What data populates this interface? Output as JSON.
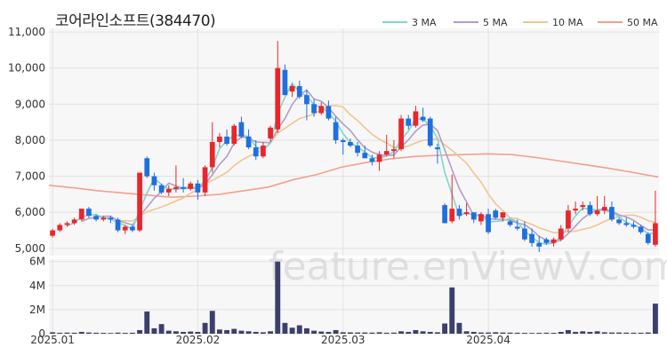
{
  "title": "코어라인소프트(384470)",
  "watermark": "feature.enViewV.com",
  "colors": {
    "up": "#e8262b",
    "down": "#1f6fe0",
    "ma3": "#7fd6cf",
    "ma5": "#b49cc8",
    "ma10": "#f2c58f",
    "ma50": "#f3a08d",
    "volume": "#3d3f6b",
    "panel": "#f7f7f7",
    "grid": "#e2e2e2"
  },
  "chart_data": {
    "type": "candlestick",
    "price_axis": {
      "ylim": [
        4800,
        11100
      ],
      "ticks": [
        5000,
        6000,
        7000,
        8000,
        9000,
        10000,
        11000
      ],
      "tick_labels": [
        "5,000",
        "6,000",
        "7,000",
        "8,000",
        "9,000",
        "10,000",
        "11,000"
      ]
    },
    "volume_axis": {
      "ylim": [
        0,
        6200000
      ],
      "ticks": [
        0,
        2000000,
        4000000,
        6000000
      ],
      "tick_labels": [
        "0",
        "2M",
        "4M",
        "6M"
      ]
    },
    "x_ticks": [
      {
        "index": 0,
        "label": "2025.01"
      },
      {
        "index": 20,
        "label": "2025.02"
      },
      {
        "index": 40,
        "label": "2025.03"
      },
      {
        "index": 60,
        "label": "2025.04"
      }
    ],
    "legend": [
      "3 MA",
      "5 MA",
      "10 MA",
      "50 MA"
    ],
    "ohlc": [
      [
        5350,
        5550,
        5300,
        5500
      ],
      [
        5500,
        5700,
        5450,
        5650
      ],
      [
        5650,
        5750,
        5600,
        5700
      ],
      [
        5700,
        5850,
        5650,
        5800
      ],
      [
        5800,
        6100,
        5750,
        6100
      ],
      [
        6100,
        6150,
        5850,
        5900
      ],
      [
        5900,
        5950,
        5750,
        5800
      ],
      [
        5800,
        5900,
        5750,
        5850
      ],
      [
        5850,
        5900,
        5700,
        5800
      ],
      [
        5800,
        5850,
        5450,
        5500
      ],
      [
        5500,
        5650,
        5400,
        5600
      ],
      [
        5600,
        5650,
        5450,
        5500
      ],
      [
        5500,
        7100,
        5450,
        7100
      ],
      [
        7500,
        7550,
        6950,
        7000
      ],
      [
        7000,
        7100,
        6600,
        6750
      ],
      [
        6750,
        6800,
        6500,
        6550
      ],
      [
        6550,
        6750,
        6450,
        6650
      ],
      [
        6650,
        7300,
        6550,
        6700
      ],
      [
        6700,
        6950,
        6550,
        6650
      ],
      [
        6650,
        6850,
        6600,
        6800
      ],
      [
        6800,
        6900,
        6350,
        6550
      ],
      [
        6550,
        7300,
        6450,
        7250
      ],
      [
        7250,
        8500,
        7100,
        7950
      ],
      [
        7950,
        8200,
        7800,
        8100
      ],
      [
        8100,
        8300,
        7850,
        7900
      ],
      [
        7900,
        8450,
        7850,
        8400
      ],
      [
        8500,
        8650,
        8050,
        8100
      ],
      [
        8100,
        8300,
        7750,
        7800
      ],
      [
        7800,
        8000,
        7450,
        7550
      ],
      [
        7550,
        7950,
        7500,
        7850
      ],
      [
        8050,
        8400,
        7950,
        8350
      ],
      [
        8300,
        10750,
        8200,
        10000
      ],
      [
        9950,
        10100,
        9250,
        9250
      ],
      [
        9350,
        9550,
        9200,
        9500
      ],
      [
        9500,
        9650,
        9150,
        9200
      ],
      [
        9250,
        9400,
        8550,
        9000
      ],
      [
        9000,
        9150,
        8650,
        8750
      ],
      [
        8750,
        9050,
        8700,
        8950
      ],
      [
        8950,
        9100,
        8550,
        8600
      ],
      [
        8500,
        8650,
        7900,
        8000
      ],
      [
        8000,
        8050,
        7600,
        7950
      ],
      [
        7950,
        8050,
        7800,
        7850
      ],
      [
        7850,
        7950,
        7550,
        7650
      ],
      [
        7650,
        7850,
        7500,
        7500
      ],
      [
        7500,
        7600,
        7300,
        7400
      ],
      [
        7400,
        7700,
        7150,
        7600
      ],
      [
        7600,
        8150,
        7550,
        7700
      ],
      [
        7700,
        8000,
        7500,
        7750
      ],
      [
        7750,
        8700,
        7700,
        8600
      ],
      [
        8600,
        8700,
        8300,
        8400
      ],
      [
        8400,
        8950,
        8350,
        8800
      ],
      [
        8650,
        8900,
        8500,
        8550
      ],
      [
        8600,
        8650,
        7800,
        7850
      ],
      [
        7800,
        7900,
        7350,
        7750
      ],
      [
        6200,
        6250,
        5700,
        5700
      ],
      [
        5750,
        7050,
        5700,
        6100
      ],
      [
        6100,
        6200,
        5800,
        5900
      ],
      [
        5950,
        6250,
        5900,
        6000
      ],
      [
        6000,
        6000,
        5700,
        5800
      ],
      [
        5750,
        6000,
        5650,
        5950
      ],
      [
        5950,
        6100,
        5400,
        5450
      ],
      [
        6050,
        6100,
        5800,
        5850
      ],
      [
        5850,
        6000,
        5750,
        6000
      ],
      [
        5750,
        5800,
        5600,
        5650
      ],
      [
        5600,
        5800,
        5500,
        5550
      ],
      [
        5550,
        5750,
        5200,
        5250
      ],
      [
        5400,
        5550,
        5050,
        5150
      ],
      [
        5150,
        5350,
        4900,
        5050
      ],
      [
        5250,
        5300,
        5100,
        5150
      ],
      [
        5150,
        5300,
        5050,
        5250
      ],
      [
        5250,
        5650,
        5200,
        5550
      ],
      [
        5550,
        6200,
        5450,
        6050
      ],
      [
        6050,
        6300,
        5950,
        6100
      ],
      [
        6150,
        6300,
        6050,
        6200
      ],
      [
        6200,
        6300,
        5900,
        5950
      ],
      [
        5950,
        6450,
        5900,
        6050
      ],
      [
        6050,
        6450,
        5950,
        6150
      ],
      [
        6150,
        6300,
        5750,
        5800
      ],
      [
        5800,
        5850,
        5650,
        5700
      ],
      [
        5700,
        5850,
        5600,
        5650
      ],
      [
        5650,
        5750,
        5550,
        5600
      ],
      [
        5600,
        5650,
        5400,
        5450
      ],
      [
        5400,
        5450,
        5100,
        5150
      ],
      [
        5100,
        6600,
        5050,
        5700
      ]
    ],
    "volume": [
      120000,
      80000,
      90000,
      80000,
      150000,
      100000,
      80000,
      70000,
      60000,
      90000,
      70000,
      80000,
      300000,
      1850000,
      450000,
      800000,
      250000,
      200000,
      150000,
      180000,
      150000,
      900000,
      1900000,
      350000,
      300000,
      400000,
      250000,
      200000,
      150000,
      120000,
      200000,
      6000000,
      900000,
      500000,
      700000,
      450000,
      250000,
      180000,
      150000,
      300000,
      120000,
      110000,
      100000,
      100000,
      90000,
      120000,
      80000,
      90000,
      200000,
      150000,
      300000,
      200000,
      150000,
      120000,
      850000,
      3850000,
      900000,
      200000,
      150000,
      100000,
      100000,
      120000,
      100000,
      90000,
      80000,
      70000,
      60000,
      70000,
      80000,
      70000,
      150000,
      300000,
      150000,
      200000,
      150000,
      200000,
      120000,
      100000,
      100000,
      90000,
      80000,
      80000,
      100000,
      2500000
    ],
    "ma50_samples": [
      6750,
      6680,
      6600,
      6540,
      6480,
      6420,
      6450,
      6500,
      6600,
      6700,
      6900,
      7050,
      7250,
      7380,
      7480,
      7550,
      7580,
      7600,
      7620,
      7600,
      7520,
      7420,
      7320,
      7220,
      7100,
      6980
    ]
  }
}
